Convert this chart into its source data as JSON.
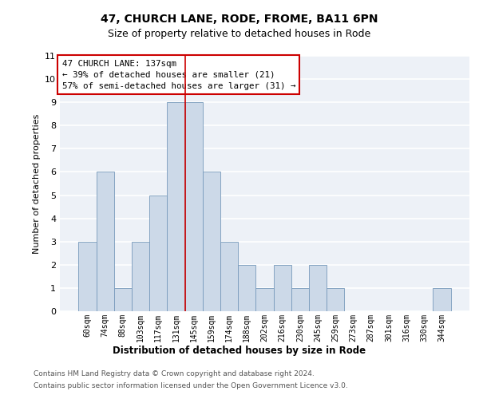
{
  "title1": "47, CHURCH LANE, RODE, FROME, BA11 6PN",
  "title2": "Size of property relative to detached houses in Rode",
  "xlabel": "Distribution of detached houses by size in Rode",
  "ylabel": "Number of detached properties",
  "categories": [
    "60sqm",
    "74sqm",
    "88sqm",
    "103sqm",
    "117sqm",
    "131sqm",
    "145sqm",
    "159sqm",
    "174sqm",
    "188sqm",
    "202sqm",
    "216sqm",
    "230sqm",
    "245sqm",
    "259sqm",
    "273sqm",
    "287sqm",
    "301sqm",
    "316sqm",
    "330sqm",
    "344sqm"
  ],
  "values": [
    3,
    6,
    1,
    3,
    5,
    9,
    9,
    6,
    3,
    2,
    1,
    2,
    1,
    2,
    1,
    0,
    0,
    0,
    0,
    0,
    1
  ],
  "bar_color": "#ccd9e8",
  "bar_edge_color": "#7799bb",
  "vline_x": 5.5,
  "vline_color": "#cc0000",
  "annotation_title": "47 CHURCH LANE: 137sqm",
  "annotation_line1": "← 39% of detached houses are smaller (21)",
  "annotation_line2": "57% of semi-detached houses are larger (31) →",
  "annotation_box_color": "#ffffff",
  "annotation_box_edge": "#cc0000",
  "ylim": [
    0,
    11
  ],
  "yticks": [
    0,
    1,
    2,
    3,
    4,
    5,
    6,
    7,
    8,
    9,
    10,
    11
  ],
  "footer1": "Contains HM Land Registry data © Crown copyright and database right 2024.",
  "footer2": "Contains public sector information licensed under the Open Government Licence v3.0.",
  "bg_color": "#edf1f7",
  "grid_color": "#ffffff"
}
